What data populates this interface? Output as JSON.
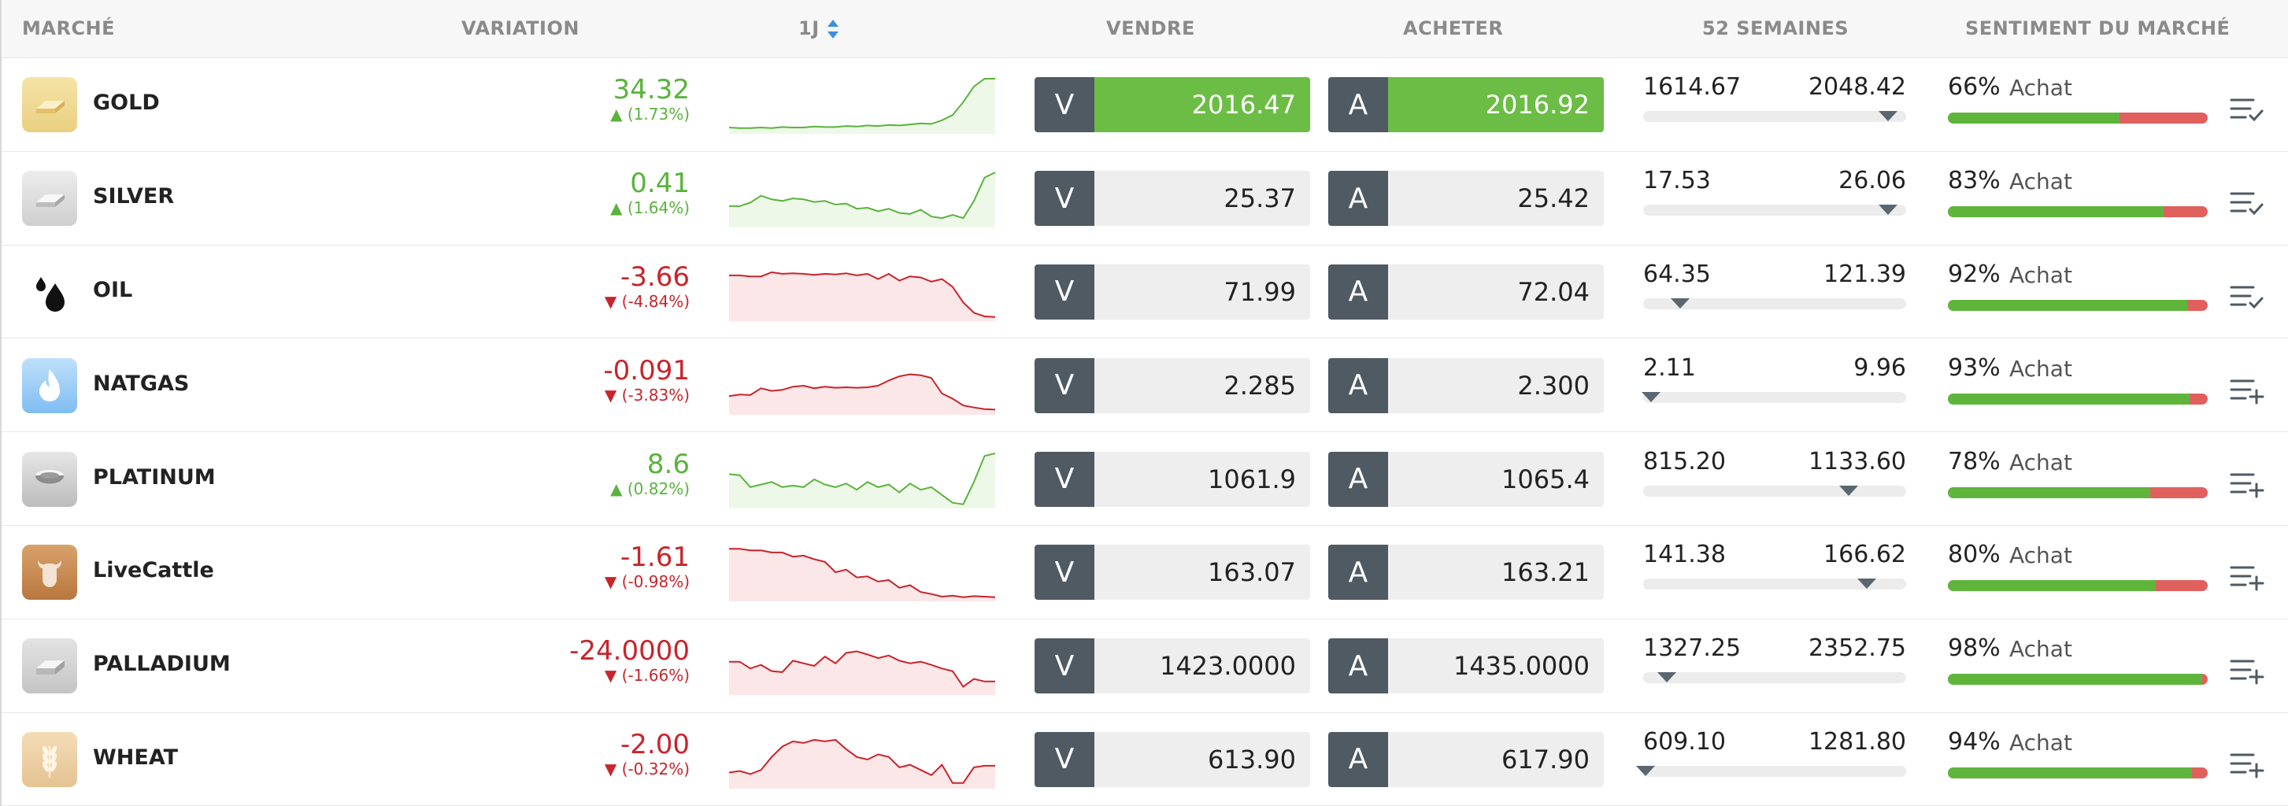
{
  "header": {
    "market": "MARCHÉ",
    "variation": "VARIATION",
    "period": "1J",
    "sell": "VENDRE",
    "buy": "ACHETER",
    "weeks52": "52 SEMAINES",
    "sentiment": "SENTIMENT DU MARCHÉ"
  },
  "colors": {
    "up": "#59b33c",
    "down": "#c9242b",
    "sell_key": "#4f5a63",
    "highlight": "#6cbd45",
    "sentiment_buy": "#5fb53c",
    "sentiment_sell": "#e0605e"
  },
  "rows": [
    {
      "name": "GOLD",
      "icon": "gold-bar-icon",
      "change": "34.32",
      "pct": "(1.73%)",
      "dir": "up",
      "sell_key": "V",
      "sell": "2016.47",
      "buy_key": "A",
      "buy": "2016.92",
      "highlight": true,
      "low": "1614.67",
      "high": "2048.42",
      "range_pos": 0.93,
      "sentiment_pct": "66%",
      "sentiment_label": "Achat",
      "sentiment_value": 0.66,
      "action_icon": "watchlist-check-icon",
      "spark": [
        0.06,
        0.05,
        0.05,
        0.06,
        0.05,
        0.07,
        0.06,
        0.06,
        0.08,
        0.07,
        0.07,
        0.09,
        0.08,
        0.1,
        0.09,
        0.11,
        0.1,
        0.12,
        0.14,
        0.13,
        0.2,
        0.3,
        0.55,
        0.85,
        1.0,
        1.0
      ]
    },
    {
      "name": "SILVER",
      "icon": "silver-bar-icon",
      "change": "0.41",
      "pct": "(1.64%)",
      "dir": "up",
      "sell_key": "V",
      "sell": "25.37",
      "buy_key": "A",
      "buy": "25.42",
      "highlight": false,
      "low": "17.53",
      "high": "26.06",
      "range_pos": 0.93,
      "sentiment_pct": "83%",
      "sentiment_label": "Achat",
      "sentiment_value": 0.83,
      "action_icon": "watchlist-check-icon",
      "spark": [
        0.35,
        0.35,
        0.42,
        0.55,
        0.48,
        0.45,
        0.5,
        0.48,
        0.43,
        0.45,
        0.38,
        0.4,
        0.3,
        0.32,
        0.25,
        0.3,
        0.22,
        0.2,
        0.28,
        0.15,
        0.12,
        0.18,
        0.12,
        0.45,
        0.9,
        1.0
      ]
    },
    {
      "name": "OIL",
      "icon": "oil-drop-icon",
      "change": "-3.66",
      "pct": "(-4.84%)",
      "dir": "down",
      "sell_key": "V",
      "sell": "71.99",
      "buy_key": "A",
      "buy": "72.04",
      "highlight": false,
      "low": "64.35",
      "high": "121.39",
      "range_pos": 0.14,
      "sentiment_pct": "92%",
      "sentiment_label": "Achat",
      "sentiment_value": 0.92,
      "action_icon": "watchlist-check-icon",
      "spark": [
        0.82,
        0.82,
        0.8,
        0.8,
        0.88,
        0.85,
        0.86,
        0.85,
        0.83,
        0.85,
        0.84,
        0.86,
        0.82,
        0.85,
        0.75,
        0.85,
        0.72,
        0.8,
        0.78,
        0.7,
        0.75,
        0.6,
        0.3,
        0.1,
        0.03,
        0.02
      ]
    },
    {
      "name": "NATGAS",
      "icon": "gas-flame-icon",
      "change": "-0.091",
      "pct": "(-3.83%)",
      "dir": "down",
      "sell_key": "V",
      "sell": "2.285",
      "buy_key": "A",
      "buy": "2.300",
      "highlight": false,
      "low": "2.11",
      "high": "9.96",
      "range_pos": 0.03,
      "sentiment_pct": "93%",
      "sentiment_label": "Achat",
      "sentiment_value": 0.93,
      "action_icon": "watchlist-add-icon",
      "spark": [
        0.3,
        0.33,
        0.32,
        0.45,
        0.4,
        0.42,
        0.48,
        0.5,
        0.45,
        0.48,
        0.46,
        0.47,
        0.46,
        0.47,
        0.5,
        0.6,
        0.68,
        0.72,
        0.7,
        0.65,
        0.35,
        0.25,
        0.12,
        0.08,
        0.05,
        0.04
      ]
    },
    {
      "name": "PLATINUM",
      "icon": "platinum-bowl-icon",
      "change": "8.6",
      "pct": "(0.82%)",
      "dir": "up",
      "sell_key": "V",
      "sell": "1061.9",
      "buy_key": "A",
      "buy": "1065.4",
      "highlight": false,
      "low": "815.20",
      "high": "1133.60",
      "range_pos": 0.78,
      "sentiment_pct": "78%",
      "sentiment_label": "Achat",
      "sentiment_value": 0.78,
      "action_icon": "watchlist-add-icon",
      "spark": [
        0.6,
        0.58,
        0.35,
        0.4,
        0.45,
        0.35,
        0.38,
        0.35,
        0.5,
        0.4,
        0.35,
        0.42,
        0.3,
        0.45,
        0.35,
        0.4,
        0.25,
        0.42,
        0.3,
        0.35,
        0.2,
        0.05,
        0.02,
        0.45,
        0.95,
        1.0
      ]
    },
    {
      "name": "LiveCattle",
      "icon": "cattle-icon",
      "change": "-1.61",
      "pct": "(-0.98%)",
      "dir": "down",
      "sell_key": "V",
      "sell": "163.07",
      "buy_key": "A",
      "buy": "163.21",
      "highlight": false,
      "low": "141.38",
      "high": "166.62",
      "range_pos": 0.85,
      "sentiment_pct": "80%",
      "sentiment_label": "Achat",
      "sentiment_value": 0.8,
      "action_icon": "watchlist-add-icon",
      "spark": [
        0.95,
        0.95,
        0.92,
        0.92,
        0.88,
        0.88,
        0.8,
        0.82,
        0.75,
        0.7,
        0.5,
        0.55,
        0.4,
        0.42,
        0.32,
        0.35,
        0.2,
        0.25,
        0.12,
        0.08,
        0.03,
        0.05,
        0.02,
        0.04,
        0.03,
        0.02
      ]
    },
    {
      "name": "PALLADIUM",
      "icon": "palladium-bar-icon",
      "change": "-24.0000",
      "pct": "(-1.66%)",
      "dir": "down",
      "sell_key": "V",
      "sell": "1423.0000",
      "buy_key": "A",
      "buy": "1435.0000",
      "highlight": false,
      "low": "1327.25",
      "high": "2352.75",
      "range_pos": 0.09,
      "sentiment_pct": "98%",
      "sentiment_label": "Achat",
      "sentiment_value": 0.98,
      "action_icon": "watchlist-add-icon",
      "spark": [
        0.58,
        0.58,
        0.45,
        0.52,
        0.4,
        0.38,
        0.6,
        0.55,
        0.5,
        0.68,
        0.55,
        0.75,
        0.78,
        0.72,
        0.65,
        0.7,
        0.6,
        0.55,
        0.58,
        0.52,
        0.45,
        0.4,
        0.1,
        0.25,
        0.2,
        0.2
      ]
    },
    {
      "name": "WHEAT",
      "icon": "wheat-icon",
      "change": "-2.00",
      "pct": "(-0.32%)",
      "dir": "down",
      "sell_key": "V",
      "sell": "613.90",
      "buy_key": "A",
      "buy": "617.90",
      "highlight": false,
      "low": "609.10",
      "high": "1281.80",
      "range_pos": 0.01,
      "sentiment_pct": "94%",
      "sentiment_label": "Achat",
      "sentiment_value": 0.94,
      "action_icon": "watchlist-add-icon",
      "spark": [
        0.25,
        0.28,
        0.22,
        0.3,
        0.55,
        0.75,
        0.85,
        0.82,
        0.88,
        0.85,
        0.88,
        0.7,
        0.55,
        0.5,
        0.6,
        0.55,
        0.35,
        0.4,
        0.3,
        0.2,
        0.4,
        0.05,
        0.05,
        0.35,
        0.38,
        0.38
      ]
    }
  ]
}
